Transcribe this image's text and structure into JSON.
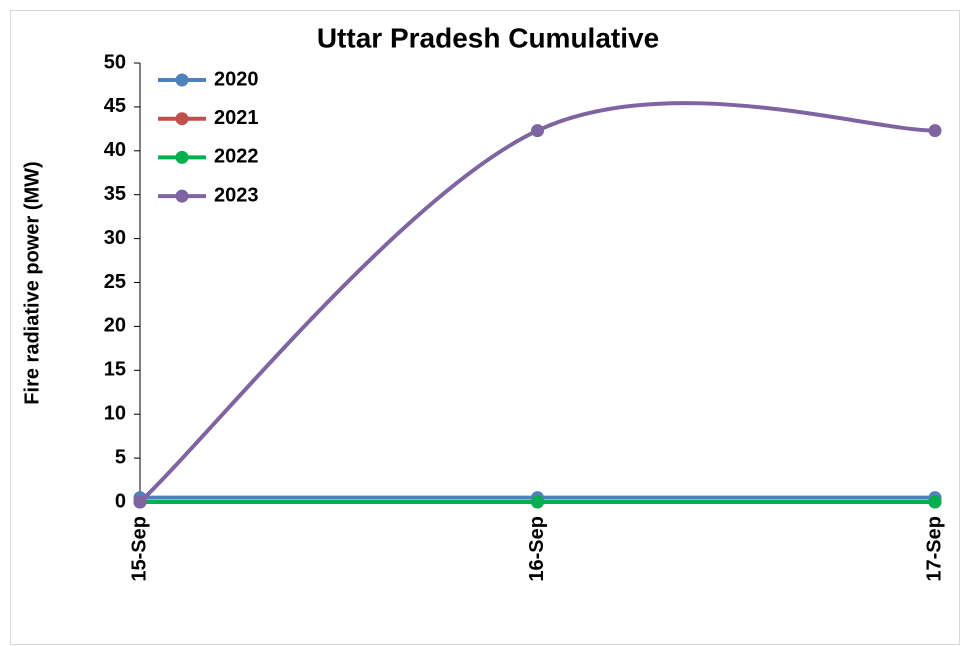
{
  "chart_data": {
    "type": "line",
    "title": "Uttar Pradesh Cumulative",
    "y_label": "Fire radiative power (MW)",
    "categories": [
      "15-Sep",
      "16-Sep",
      "17-Sep"
    ],
    "series": [
      {
        "name": "2020",
        "color": "#4f81bd",
        "values": [
          0.5,
          0.5,
          0.5
        ]
      },
      {
        "name": "2021",
        "color": "#c0504d",
        "values": [
          0,
          0,
          0
        ]
      },
      {
        "name": "2022",
        "color": "#00b050",
        "values": [
          0,
          0,
          0
        ]
      },
      {
        "name": "2023",
        "color": "#8064a2",
        "values": [
          0,
          42.3,
          42.3
        ]
      }
    ],
    "smooth": true,
    "ylim": [
      0,
      50
    ],
    "yticks": [
      0,
      5,
      10,
      15,
      20,
      25,
      30,
      35,
      40,
      45,
      50
    ],
    "grid": false,
    "legend": "upper left"
  }
}
